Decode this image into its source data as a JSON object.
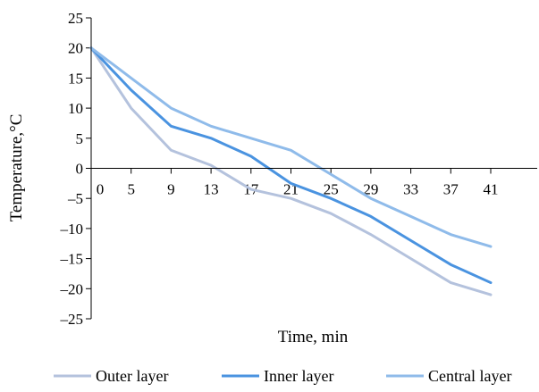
{
  "chart_data": {
    "type": "line",
    "title": "",
    "xlabel": "Time, min",
    "ylabel": "Temperature,°C",
    "x": [
      0,
      5,
      9,
      13,
      17,
      21,
      25,
      29,
      33,
      37,
      41
    ],
    "x_tick_labels": [
      "0",
      "5",
      "9",
      "13",
      "17",
      "21",
      "25",
      "29",
      "33",
      "37",
      "41"
    ],
    "ylim": [
      -25,
      25
    ],
    "y_ticks": [
      25,
      20,
      15,
      10,
      5,
      0,
      -5,
      -10,
      -15,
      -20,
      -25
    ],
    "y_tick_labels": [
      "25",
      "20",
      "15",
      "10",
      "5",
      "0",
      "–5",
      "–10",
      "–15",
      "–20",
      "–25"
    ],
    "grid": false,
    "legend": "bottom",
    "series": [
      {
        "name": "Outer layer",
        "color": "#b4c2dd",
        "values": [
          20,
          10,
          3,
          0.5,
          -3.5,
          -5,
          -7.5,
          -11,
          -15,
          -19,
          -21
        ]
      },
      {
        "name": "Inner layer",
        "color": "#4a93e0",
        "values": [
          20,
          13,
          7,
          5,
          2,
          -2.5,
          -5,
          -8,
          -12,
          -16,
          -19
        ]
      },
      {
        "name": "Central layer",
        "color": "#8fbbea",
        "values": [
          20,
          15,
          10,
          7,
          5,
          3,
          -1,
          -5,
          -8,
          -11,
          -13
        ]
      }
    ]
  }
}
